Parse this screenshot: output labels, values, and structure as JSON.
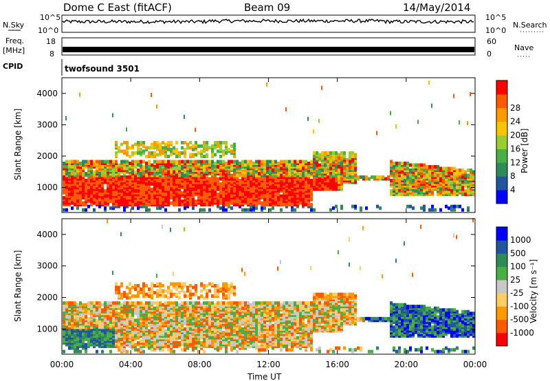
{
  "header": {
    "title": "Dome C East (fitACF)",
    "beam": "Beam 09",
    "date": "14/May/2014"
  },
  "top_panels": {
    "nsky_label": "N.Sky",
    "nsky_ticks": [
      "10^5",
      "10^0"
    ],
    "nsearch_label": "N.Search",
    "nsearch_ticks": [
      "10^5",
      "10^0"
    ],
    "freq_label": "Freq.",
    "freq_unit": "[MHz]",
    "freq_ticks": [
      "18",
      "8"
    ],
    "nave_label": "Nave",
    "nave_ticks": [
      "60",
      "0"
    ],
    "cpid_label": "CPID",
    "cpid_value": "twofsound 3501"
  },
  "colors": {
    "power_scale": [
      "#0000ff",
      "#2155a0",
      "#2f8a57",
      "#4aae44",
      "#9acd32",
      "#f7c600",
      "#ff9900",
      "#ff5a00",
      "#ff0000"
    ],
    "velocity_scale": [
      "#0000ff",
      "#2155a0",
      "#2f8a57",
      "#4aae44",
      "#c8c8c8",
      "#ffcc66",
      "#ff9900",
      "#ff5a00",
      "#ff0000"
    ]
  },
  "chart_data": [
    {
      "type": "heatmap",
      "panel": "power",
      "ylabel": "Slant Range [km]",
      "yticks": [
        "1000",
        "2000",
        "3000",
        "4000"
      ],
      "ylim": [
        200,
        4500
      ],
      "colorbar_label": "Power [dB]",
      "colorbar_ticks": [
        "4",
        "8",
        "12",
        "16",
        "20",
        "24",
        "28"
      ],
      "colorbar_range": [
        0,
        32
      ]
    },
    {
      "type": "heatmap",
      "panel": "velocity",
      "ylabel": "Slant Range [km]",
      "yticks": [
        "1000",
        "2000",
        "3000",
        "4000"
      ],
      "ylim": [
        200,
        4500
      ],
      "colorbar_label": "Velocity [m s⁻¹]",
      "colorbar_ticks": [
        "1000",
        "500",
        "100",
        "25",
        "-25",
        "-100",
        "-500",
        "-1000"
      ]
    }
  ],
  "xaxis": {
    "label": "Time UT",
    "ticks": [
      "00:00",
      "04:00",
      "08:00",
      "12:00",
      "16:00",
      "20:00",
      "00:00"
    ]
  }
}
